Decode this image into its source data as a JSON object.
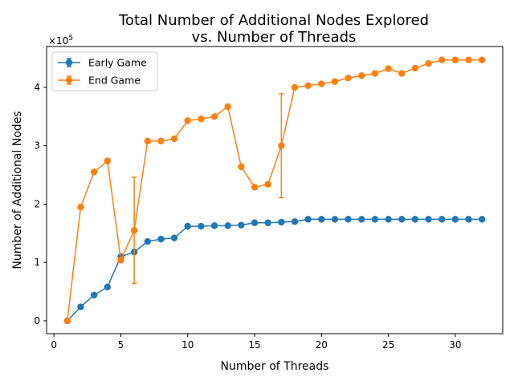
{
  "chart_data": {
    "type": "line",
    "title_line1": "Total Number of Additional Nodes Explored",
    "title_line2": "vs. Number of Threads",
    "xlabel": "Number of Threads",
    "ylabel": "Number of Additional Nodes",
    "y_multiplier_label": "×10",
    "y_multiplier_exp": "5",
    "xlim": [
      -0.55,
      33.55
    ],
    "ylim": [
      -0.22,
      4.7
    ],
    "x_ticks": [
      0,
      5,
      10,
      15,
      20,
      25,
      30
    ],
    "y_ticks": [
      0,
      1,
      2,
      3,
      4
    ],
    "grid": false,
    "legend_position": "upper-left",
    "series": [
      {
        "name": "Early Game",
        "color": "#1f77b4",
        "x": [
          1,
          2,
          3,
          4,
          5,
          6,
          7,
          8,
          9,
          10,
          11,
          12,
          13,
          14,
          15,
          16,
          17,
          18,
          19,
          20,
          21,
          22,
          23,
          24,
          25,
          26,
          27,
          28,
          29,
          30,
          31,
          32
        ],
        "y": [
          0.0,
          0.24,
          0.44,
          0.58,
          1.1,
          1.18,
          1.36,
          1.4,
          1.42,
          1.62,
          1.62,
          1.63,
          1.63,
          1.64,
          1.68,
          1.68,
          1.69,
          1.7,
          1.74,
          1.74,
          1.74,
          1.74,
          1.74,
          1.74,
          1.74,
          1.74,
          1.74,
          1.74,
          1.74,
          1.74,
          1.74,
          1.74
        ],
        "err": [
          0,
          0,
          0,
          0,
          0,
          0,
          0,
          0,
          0,
          0,
          0,
          0,
          0,
          0,
          0,
          0,
          0,
          0,
          0,
          0,
          0,
          0,
          0,
          0,
          0,
          0,
          0,
          0,
          0,
          0,
          0,
          0
        ]
      },
      {
        "name": "End Game",
        "color": "#ff7f0e",
        "x": [
          1,
          2,
          3,
          4,
          5,
          6,
          7,
          8,
          9,
          10,
          11,
          12,
          13,
          14,
          15,
          16,
          17,
          18,
          19,
          20,
          21,
          22,
          23,
          24,
          25,
          26,
          27,
          28,
          29,
          30,
          31,
          32
        ],
        "y": [
          0.0,
          1.95,
          2.55,
          2.74,
          1.04,
          1.55,
          3.08,
          3.08,
          3.12,
          3.43,
          3.46,
          3.5,
          3.67,
          2.64,
          2.29,
          2.34,
          3.0,
          4.0,
          4.03,
          4.06,
          4.1,
          4.16,
          4.2,
          4.24,
          4.32,
          4.24,
          4.33,
          4.41,
          4.47,
          4.47,
          4.47,
          4.47
        ],
        "err": [
          0,
          0,
          0,
          0,
          0,
          0.91,
          0,
          0,
          0,
          0,
          0,
          0,
          0,
          0,
          0,
          0,
          0.89,
          0,
          0,
          0,
          0,
          0,
          0,
          0,
          0,
          0,
          0,
          0,
          0,
          0,
          0,
          0
        ]
      }
    ]
  }
}
